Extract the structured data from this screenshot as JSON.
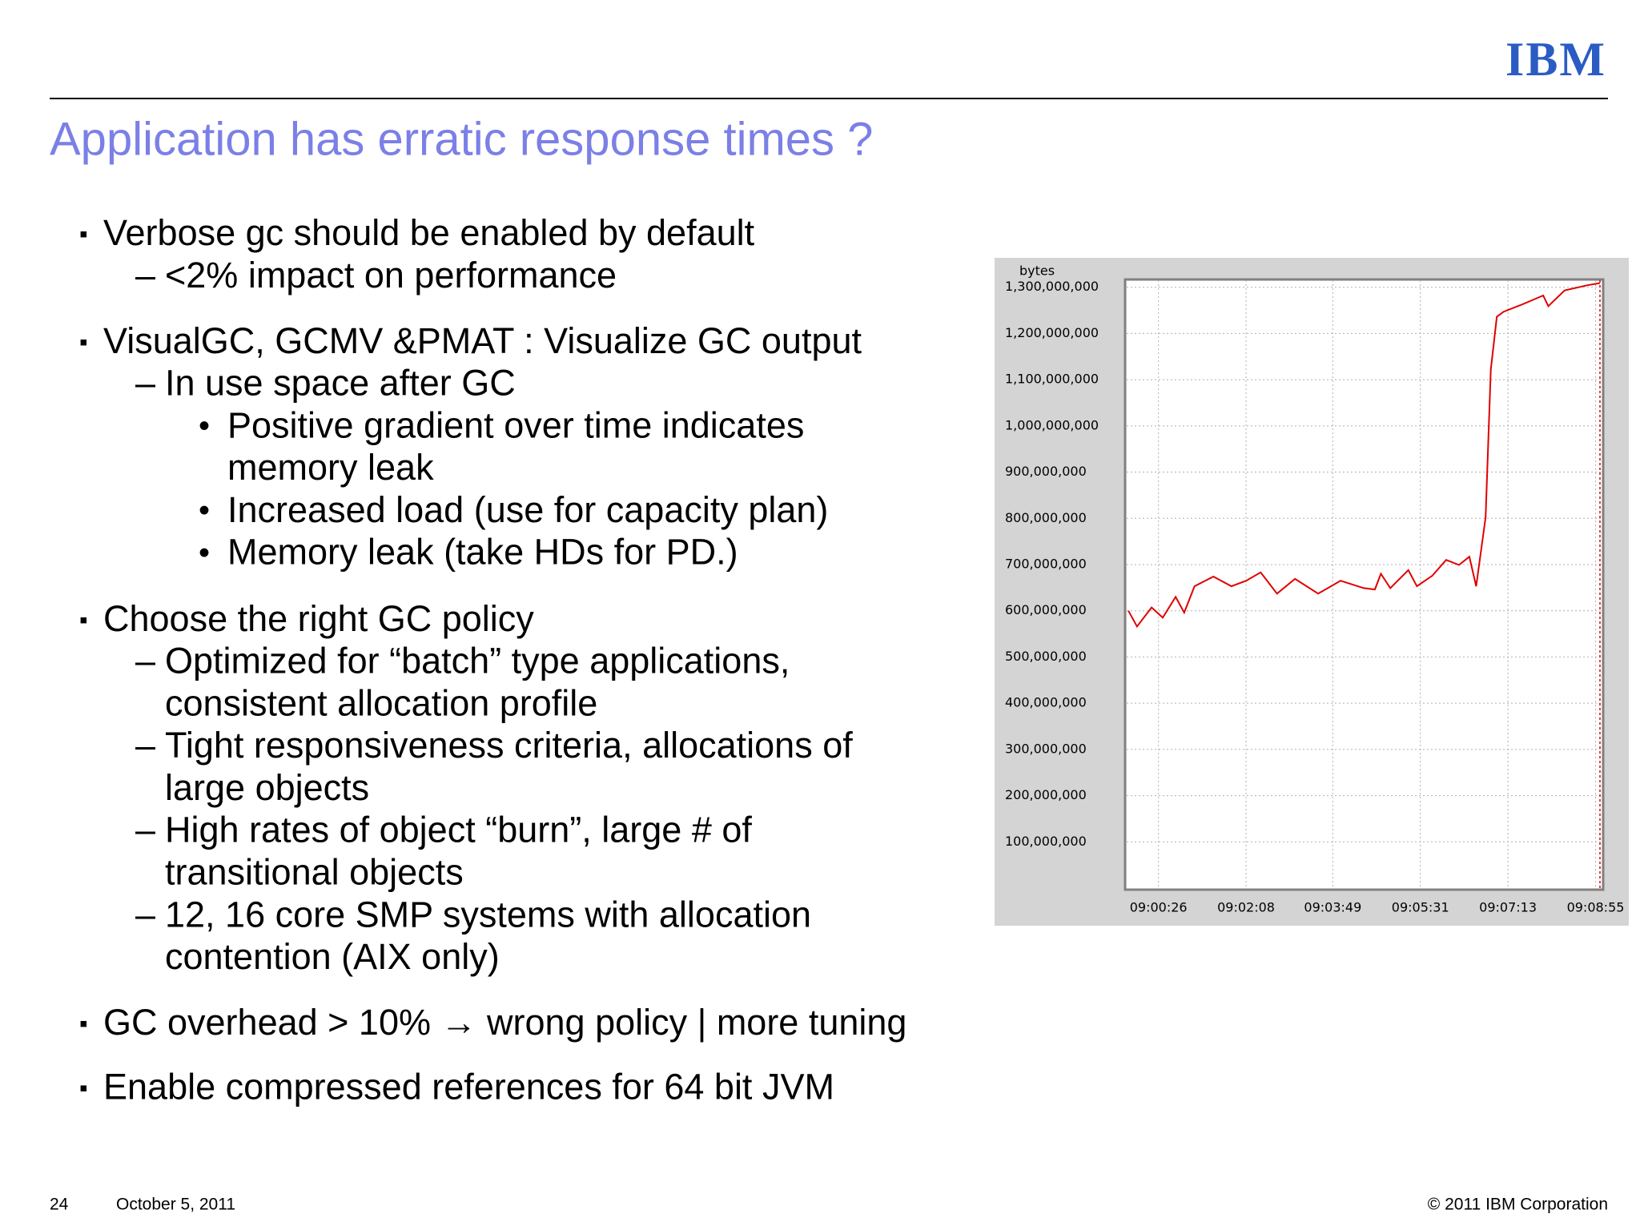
{
  "header": {
    "logo": "IBM"
  },
  "title": "Application has erratic response times ?",
  "bullets": [
    {
      "level": 1,
      "lines": [
        "Verbose gc should be enabled by default"
      ]
    },
    {
      "level": 2,
      "lines": [
        "<2% impact on performance"
      ]
    },
    {
      "level": 1,
      "lines": [
        "VisualGC, GCMV &PMAT : Visualize GC output"
      ]
    },
    {
      "level": 2,
      "lines": [
        "In use space after GC"
      ]
    },
    {
      "level": 3,
      "lines": [
        "Positive gradient over time indicates",
        "memory leak"
      ]
    },
    {
      "level": 3,
      "lines": [
        "Increased load (use for capacity plan)"
      ]
    },
    {
      "level": 3,
      "lines": [
        "Memory leak (take HDs for PD.)"
      ]
    },
    {
      "level": 1,
      "lines": [
        " Choose the right GC policy"
      ]
    },
    {
      "level": 2,
      "lines": [
        "Optimized for “batch” type applications,",
        "consistent allocation profile"
      ]
    },
    {
      "level": 2,
      "lines": [
        "Tight responsiveness criteria, allocations of",
        "large objects"
      ]
    },
    {
      "level": 2,
      "lines": [
        "High rates of object “burn”, large # of",
        "transitional objects"
      ]
    },
    {
      "level": 2,
      "lines": [
        "12, 16 core SMP systems with allocation",
        "contention (AIX only)"
      ]
    },
    {
      "level": 1,
      "lines": [
        "GC overhead > 10% → wrong policy | more tuning"
      ]
    },
    {
      "level": 1,
      "lines": [
        "Enable compressed references for 64 bit JVM"
      ]
    }
  ],
  "chart_data": {
    "type": "line",
    "y_label": "bytes",
    "x": [
      "08:59:51",
      "09:00:01",
      "09:00:18",
      "09:00:31",
      "09:00:46",
      "09:00:56",
      "09:01:08",
      "09:01:30",
      "09:01:51",
      "09:02:08",
      "09:02:25",
      "09:02:44",
      "09:03:05",
      "09:03:32",
      "09:03:58",
      "09:04:25",
      "09:04:38",
      "09:04:45",
      "09:04:56",
      "09:05:17",
      "09:05:27",
      "09:05:45",
      "09:06:01",
      "09:06:16",
      "09:06:28",
      "09:06:36",
      "09:06:47",
      "09:06:53",
      "09:07:00",
      "09:07:08",
      "09:07:30",
      "09:07:54",
      "09:08:00",
      "09:08:19",
      "09:08:45",
      "09:09:00"
    ],
    "series": [
      {
        "color": "#e00000",
        "values": [
          600000000,
          566000000,
          607000000,
          585000000,
          630000000,
          596000000,
          653000000,
          674000000,
          653000000,
          665000000,
          683000000,
          637000000,
          669000000,
          637000000,
          665000000,
          649000000,
          646000000,
          680000000,
          649000000,
          688000000,
          653000000,
          676000000,
          710000000,
          699000000,
          717000000,
          653000000,
          802000000,
          1122000000,
          1236000000,
          1247000000,
          1263000000,
          1282000000,
          1259000000,
          1293000000,
          1304000000,
          1309000000
        ]
      }
    ],
    "xlim": [
      "08:59:49",
      "09:09:02"
    ],
    "xticks": [
      "09:00:26",
      "09:02:08",
      "09:03:49",
      "09:05:31",
      "09:07:13",
      "09:08:55"
    ],
    "ylim": [
      0,
      1315000000
    ],
    "yticks": [
      {
        "value": 100000000,
        "label": "100,000,000"
      },
      {
        "value": 200000000,
        "label": "200,000,000"
      },
      {
        "value": 300000000,
        "label": "300,000,000"
      },
      {
        "value": 400000000,
        "label": "400,000,000"
      },
      {
        "value": 500000000,
        "label": "500,000,000"
      },
      {
        "value": 600000000,
        "label": "600,000,000"
      },
      {
        "value": 700000000,
        "label": "700,000,000"
      },
      {
        "value": 800000000,
        "label": "800,000,000"
      },
      {
        "value": 900000000,
        "label": "900,000,000"
      },
      {
        "value": 1000000000,
        "label": "1,000,000,000"
      },
      {
        "value": 1100000000,
        "label": "1,100,000,000"
      },
      {
        "value": 1200000000,
        "label": "1,200,000,000"
      },
      {
        "value": 1300000000,
        "label": "1,300,000,000"
      }
    ],
    "grid": true
  },
  "footer": {
    "page": "24",
    "date": "October 5, 2011",
    "copyright": "© 2011 IBM Corporation"
  }
}
